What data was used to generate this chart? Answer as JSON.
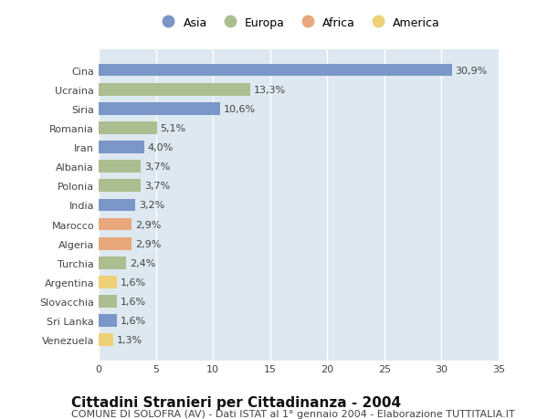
{
  "countries": [
    "Cina",
    "Ucraina",
    "Siria",
    "Romania",
    "Iran",
    "Albania",
    "Polonia",
    "India",
    "Marocco",
    "Algeria",
    "Turchia",
    "Argentina",
    "Slovacchia",
    "Sri Lanka",
    "Venezuela"
  ],
  "values": [
    30.9,
    13.3,
    10.6,
    5.1,
    4.0,
    3.7,
    3.7,
    3.2,
    2.9,
    2.9,
    2.4,
    1.6,
    1.6,
    1.6,
    1.3
  ],
  "labels": [
    "30,9%",
    "13,3%",
    "10,6%",
    "5,1%",
    "4,0%",
    "3,7%",
    "3,7%",
    "3,2%",
    "2,9%",
    "2,9%",
    "2,4%",
    "1,6%",
    "1,6%",
    "1,6%",
    "1,3%"
  ],
  "continents": [
    "Asia",
    "Europa",
    "Asia",
    "Europa",
    "Asia",
    "Europa",
    "Europa",
    "Asia",
    "Africa",
    "Africa",
    "Europa",
    "America",
    "Europa",
    "Asia",
    "America"
  ],
  "colors": {
    "Asia": "#7B96C8",
    "Europa": "#ABBE90",
    "Africa": "#E8A87C",
    "America": "#EDD078"
  },
  "title": "Cittadini Stranieri per Cittadinanza - 2004",
  "subtitle": "COMUNE DI SOLOFRA (AV) - Dati ISTAT al 1° gennaio 2004 - Elaborazione TUTTITALIA.IT",
  "xlim": [
    0,
    35
  ],
  "xticks": [
    0,
    5,
    10,
    15,
    20,
    25,
    30,
    35
  ],
  "background_color": "#ffffff",
  "plot_background": "#dde8f0",
  "grid_color": "#ffffff",
  "label_fontsize": 8,
  "tick_fontsize": 8,
  "legend_fontsize": 9,
  "title_fontsize": 11,
  "subtitle_fontsize": 8
}
